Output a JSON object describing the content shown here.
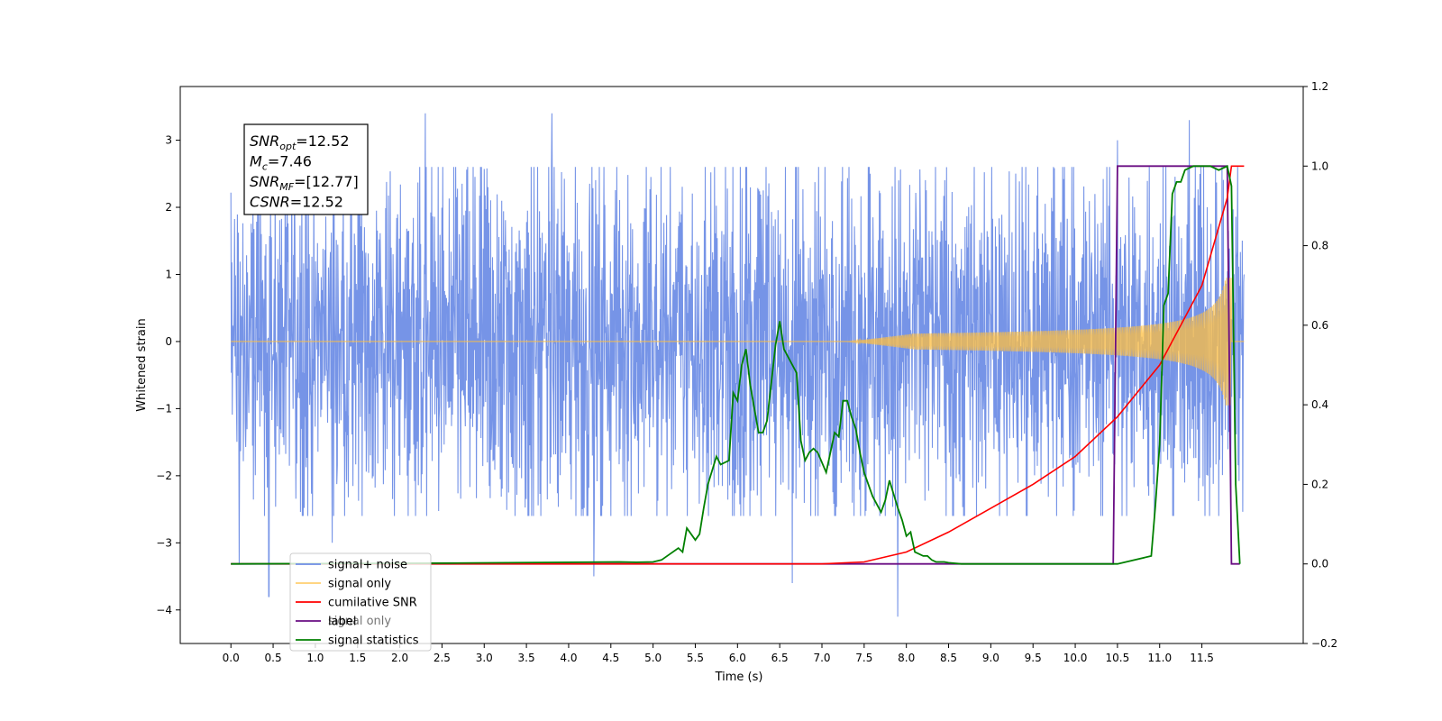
{
  "chart_data": {
    "type": "line",
    "xlabel": "Time (s)",
    "ylabel_left": "Whitened strain",
    "ylabel_right": "",
    "xlim": [
      -0.6,
      12.7
    ],
    "ylim_left": [
      -4.5,
      3.8
    ],
    "ylim_right": [
      -0.2,
      1.2
    ],
    "x_ticks": [
      "0.0",
      "0.5",
      "1.0",
      "1.5",
      "2.0",
      "2.5",
      "3.0",
      "3.5",
      "4.0",
      "4.5",
      "5.0",
      "5.5",
      "6.0",
      "6.5",
      "7.0",
      "7.5",
      "8.0",
      "8.5",
      "9.0",
      "9.5",
      "10.0",
      "10.5",
      "11.0",
      "11.5"
    ],
    "y_ticks_left": [
      "−4",
      "−3",
      "−2",
      "−1",
      "0",
      "1",
      "2",
      "3"
    ],
    "y_ticks_right": [
      "−0.2",
      "0.0",
      "0.2",
      "0.4",
      "0.6",
      "0.8",
      "1.0",
      "1.2"
    ],
    "grid": false,
    "legend_position": "lower-left",
    "annotation": {
      "lines": [
        {
          "base": "SNR",
          "sub": "opt",
          "rest": "=12.52"
        },
        {
          "base": "M",
          "sub": "c",
          "rest": "=7.46"
        },
        {
          "base": "SNR",
          "sub": "MF",
          "rest": "=[12.77]"
        },
        {
          "base": "CSNR",
          "sub": "",
          "rest": "=12.52"
        }
      ]
    },
    "series": [
      {
        "name": "signal+ noise",
        "color": "#6f8ee6",
        "axis": "left",
        "x_range": [
          0.0,
          12.0
        ],
        "envelope_typical": 1.9,
        "notable_peaks": [
          [
            0.1,
            -3.3
          ],
          [
            0.45,
            -3.8
          ],
          [
            1.2,
            -3.0
          ],
          [
            2.3,
            3.4
          ],
          [
            3.8,
            3.4
          ],
          [
            4.3,
            -3.5
          ],
          [
            6.65,
            -3.6
          ],
          [
            7.9,
            -4.1
          ],
          [
            10.5,
            3.0
          ],
          [
            11.35,
            3.3
          ]
        ]
      },
      {
        "name": "signal only",
        "color": "#ffbf40",
        "axis": "left",
        "description_values": {
          "flat_until": 7.5,
          "amplitude_at_11.0": 0.3,
          "amplitude_at_11.8": 0.95,
          "merger_time": 11.85
        }
      },
      {
        "name": "cumilative SNR",
        "color": "#ff0000",
        "axis": "right",
        "x": [
          0.0,
          7.0,
          7.5,
          8.0,
          8.5,
          9.0,
          9.5,
          10.0,
          10.5,
          11.0,
          11.5,
          11.8,
          11.85,
          12.0
        ],
        "y": [
          0.0,
          0.0,
          0.005,
          0.03,
          0.08,
          0.14,
          0.2,
          0.27,
          0.37,
          0.5,
          0.7,
          0.92,
          1.0,
          1.0
        ]
      },
      {
        "name": "label",
        "color": "#6a0d83",
        "axis": "right",
        "x": [
          0.0,
          10.45,
          10.5,
          11.8,
          11.85,
          11.95
        ],
        "y": [
          0.0,
          0.0,
          1.0,
          1.0,
          0.0,
          0.0
        ]
      },
      {
        "name": "signal statistics",
        "color": "#008000",
        "axis": "right",
        "x": [
          0.0,
          2.6,
          4.6,
          4.8,
          5.0,
          5.1,
          5.2,
          5.3,
          5.35,
          5.4,
          5.5,
          5.55,
          5.6,
          5.65,
          5.75,
          5.8,
          5.9,
          5.95,
          6.0,
          6.05,
          6.1,
          6.15,
          6.25,
          6.3,
          6.35,
          6.45,
          6.5,
          6.55,
          6.65,
          6.7,
          6.75,
          6.8,
          6.85,
          6.9,
          6.95,
          7.05,
          7.1,
          7.15,
          7.2,
          7.25,
          7.3,
          7.35,
          7.4,
          7.45,
          7.5,
          7.6,
          7.7,
          7.75,
          7.8,
          7.9,
          7.95,
          8.0,
          8.05,
          8.1,
          8.2,
          8.25,
          8.3,
          8.35,
          8.45,
          8.5,
          8.65,
          8.8,
          9.0,
          10.0,
          10.5,
          10.9,
          10.95,
          11.0,
          11.05,
          11.1,
          11.15,
          11.2,
          11.25,
          11.3,
          11.4,
          11.5,
          11.6,
          11.7,
          11.8,
          11.85,
          11.9,
          11.95
        ],
        "y": [
          0.0,
          0.002,
          0.005,
          0.004,
          0.005,
          0.01,
          0.025,
          0.04,
          0.03,
          0.09,
          0.06,
          0.075,
          0.14,
          0.2,
          0.27,
          0.25,
          0.26,
          0.43,
          0.41,
          0.5,
          0.54,
          0.45,
          0.33,
          0.33,
          0.36,
          0.55,
          0.61,
          0.54,
          0.5,
          0.48,
          0.31,
          0.26,
          0.28,
          0.29,
          0.28,
          0.23,
          0.28,
          0.33,
          0.32,
          0.41,
          0.41,
          0.37,
          0.34,
          0.28,
          0.23,
          0.17,
          0.13,
          0.16,
          0.21,
          0.14,
          0.11,
          0.07,
          0.08,
          0.03,
          0.02,
          0.02,
          0.01,
          0.005,
          0.005,
          0.003,
          0.0,
          0.0,
          0.0,
          0.0,
          0.0,
          0.02,
          0.15,
          0.3,
          0.65,
          0.68,
          0.93,
          0.96,
          0.96,
          0.99,
          1.0,
          1.0,
          1.0,
          0.99,
          1.0,
          0.95,
          0.2,
          0.0
        ]
      }
    ],
    "legend_overlap_text": "signal only"
  }
}
